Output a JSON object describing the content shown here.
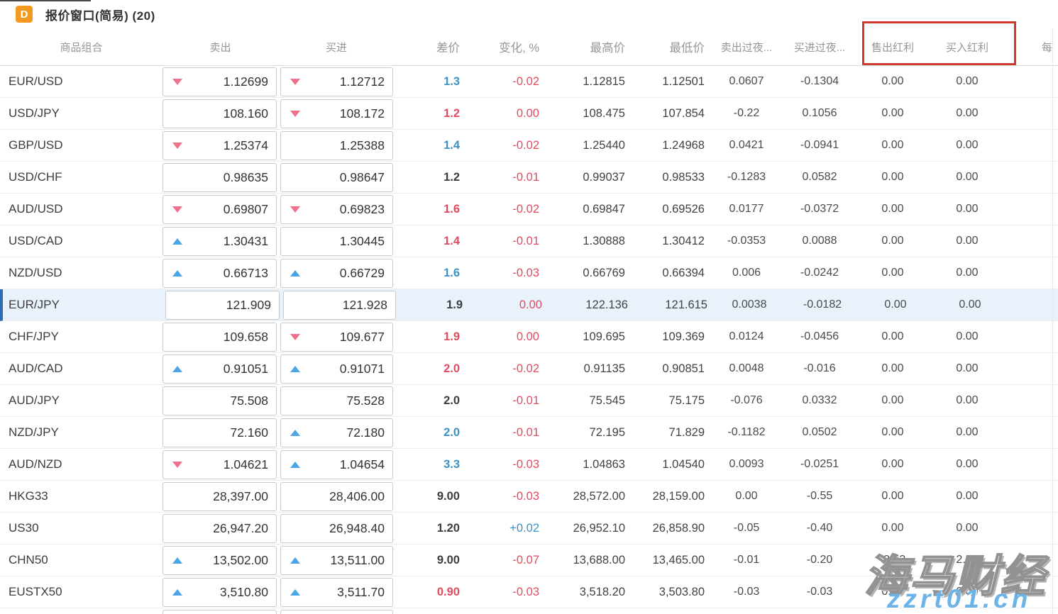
{
  "window": {
    "icon_letter": "D",
    "title": "报价窗口(简易) (20)"
  },
  "columns": [
    {
      "label": "商品组合"
    },
    {
      "label": "卖出"
    },
    {
      "label": "买进"
    },
    {
      "label": "差价"
    },
    {
      "label": "变化, %"
    },
    {
      "label": "最高价"
    },
    {
      "label": "最低价"
    },
    {
      "label": "卖出过夜..."
    },
    {
      "label": "买进过夜..."
    },
    {
      "label": "售出红利"
    },
    {
      "label": "买入红利"
    },
    {
      "label": "每"
    }
  ],
  "annotation": {
    "type": "red-highlight-box",
    "highlighted_columns": [
      "售出红利",
      "买入红利"
    ],
    "color": "#cf3a2e"
  },
  "palette": {
    "red": "#e14b60",
    "blue": "#3a92c5",
    "dark": "#3c3c3c",
    "up_arrow": "#49a5e6",
    "down_arrow": "#f0718a",
    "selected_row_bg": "#e9f2fb",
    "selected_row_border": "#2b6cb0",
    "icon_orange": "#f29a1f",
    "watermark_blue": "#6cb3e8"
  },
  "watermark": {
    "line1": "海马财经",
    "line2": "zzrt01.cn"
  },
  "rows": [
    {
      "symbol": "EUR/USD",
      "sell": "1.12699",
      "sell_arrow": "down",
      "buy": "1.12712",
      "buy_arrow": "down",
      "spread": "1.3",
      "spread_color": "blue",
      "change": "-0.02",
      "change_color": "red",
      "high": "1.12815",
      "low": "1.12501",
      "sell_swap": "0.0607",
      "buy_swap": "-0.1304",
      "sell_div": "0.00",
      "buy_div": "0.00"
    },
    {
      "symbol": "USD/JPY",
      "sell": "108.160",
      "sell_arrow": "",
      "buy": "108.172",
      "buy_arrow": "down",
      "spread": "1.2",
      "spread_color": "red",
      "change": "0.00",
      "change_color": "red",
      "high": "108.475",
      "low": "107.854",
      "sell_swap": "-0.22",
      "buy_swap": "0.1056",
      "sell_div": "0.00",
      "buy_div": "0.00"
    },
    {
      "symbol": "GBP/USD",
      "sell": "1.25374",
      "sell_arrow": "down",
      "buy": "1.25388",
      "buy_arrow": "",
      "spread": "1.4",
      "spread_color": "blue",
      "change": "-0.02",
      "change_color": "red",
      "high": "1.25440",
      "low": "1.24968",
      "sell_swap": "0.0421",
      "buy_swap": "-0.0941",
      "sell_div": "0.00",
      "buy_div": "0.00"
    },
    {
      "symbol": "USD/CHF",
      "sell": "0.98635",
      "sell_arrow": "",
      "buy": "0.98647",
      "buy_arrow": "",
      "spread": "1.2",
      "spread_color": "dark",
      "change": "-0.01",
      "change_color": "red",
      "high": "0.99037",
      "low": "0.98533",
      "sell_swap": "-0.1283",
      "buy_swap": "0.0582",
      "sell_div": "0.00",
      "buy_div": "0.00"
    },
    {
      "symbol": "AUD/USD",
      "sell": "0.69807",
      "sell_arrow": "down",
      "buy": "0.69823",
      "buy_arrow": "down",
      "spread": "1.6",
      "spread_color": "red",
      "change": "-0.02",
      "change_color": "red",
      "high": "0.69847",
      "low": "0.69526",
      "sell_swap": "0.0177",
      "buy_swap": "-0.0372",
      "sell_div": "0.00",
      "buy_div": "0.00"
    },
    {
      "symbol": "USD/CAD",
      "sell": "1.30431",
      "sell_arrow": "up",
      "buy": "1.30445",
      "buy_arrow": "",
      "spread": "1.4",
      "spread_color": "red",
      "change": "-0.01",
      "change_color": "red",
      "high": "1.30888",
      "low": "1.30412",
      "sell_swap": "-0.0353",
      "buy_swap": "0.0088",
      "sell_div": "0.00",
      "buy_div": "0.00"
    },
    {
      "symbol": "NZD/USD",
      "sell": "0.66713",
      "sell_arrow": "up",
      "buy": "0.66729",
      "buy_arrow": "up",
      "spread": "1.6",
      "spread_color": "blue",
      "change": "-0.03",
      "change_color": "red",
      "high": "0.66769",
      "low": "0.66394",
      "sell_swap": "0.006",
      "buy_swap": "-0.0242",
      "sell_div": "0.00",
      "buy_div": "0.00"
    },
    {
      "symbol": "EUR/JPY",
      "selected": true,
      "sell": "121.909",
      "sell_arrow": "",
      "buy": "121.928",
      "buy_arrow": "",
      "spread": "1.9",
      "spread_color": "dark",
      "change": "0.00",
      "change_color": "red",
      "high": "122.136",
      "low": "121.615",
      "sell_swap": "0.0038",
      "buy_swap": "-0.0182",
      "sell_div": "0.00",
      "buy_div": "0.00"
    },
    {
      "symbol": "CHF/JPY",
      "sell": "109.658",
      "sell_arrow": "",
      "buy": "109.677",
      "buy_arrow": "down",
      "spread": "1.9",
      "spread_color": "red",
      "change": "0.00",
      "change_color": "red",
      "high": "109.695",
      "low": "109.369",
      "sell_swap": "0.0124",
      "buy_swap": "-0.0456",
      "sell_div": "0.00",
      "buy_div": "0.00"
    },
    {
      "symbol": "AUD/CAD",
      "sell": "0.91051",
      "sell_arrow": "up",
      "buy": "0.91071",
      "buy_arrow": "up",
      "spread": "2.0",
      "spread_color": "red",
      "change": "-0.02",
      "change_color": "red",
      "high": "0.91135",
      "low": "0.90851",
      "sell_swap": "0.0048",
      "buy_swap": "-0.016",
      "sell_div": "0.00",
      "buy_div": "0.00"
    },
    {
      "symbol": "AUD/JPY",
      "sell": "75.508",
      "sell_arrow": "",
      "buy": "75.528",
      "buy_arrow": "",
      "spread": "2.0",
      "spread_color": "dark",
      "change": "-0.01",
      "change_color": "red",
      "high": "75.545",
      "low": "75.175",
      "sell_swap": "-0.076",
      "buy_swap": "0.0332",
      "sell_div": "0.00",
      "buy_div": "0.00"
    },
    {
      "symbol": "NZD/JPY",
      "sell": "72.160",
      "sell_arrow": "",
      "buy": "72.180",
      "buy_arrow": "up",
      "spread": "2.0",
      "spread_color": "blue",
      "change": "-0.01",
      "change_color": "red",
      "high": "72.195",
      "low": "71.829",
      "sell_swap": "-0.1182",
      "buy_swap": "0.0502",
      "sell_div": "0.00",
      "buy_div": "0.00"
    },
    {
      "symbol": "AUD/NZD",
      "sell": "1.04621",
      "sell_arrow": "down",
      "buy": "1.04654",
      "buy_arrow": "up",
      "spread": "3.3",
      "spread_color": "blue",
      "change": "-0.03",
      "change_color": "red",
      "high": "1.04863",
      "low": "1.04540",
      "sell_swap": "0.0093",
      "buy_swap": "-0.0251",
      "sell_div": "0.00",
      "buy_div": "0.00"
    },
    {
      "symbol": "HKG33",
      "sell": "28,397.00",
      "sell_arrow": "",
      "buy": "28,406.00",
      "buy_arrow": "",
      "spread": "9.00",
      "spread_color": "dark",
      "change": "-0.03",
      "change_color": "red",
      "high": "28,572.00",
      "low": "28,159.00",
      "sell_swap": "0.00",
      "buy_swap": "-0.55",
      "sell_div": "0.00",
      "buy_div": "0.00"
    },
    {
      "symbol": "US30",
      "sell": "26,947.20",
      "sell_arrow": "",
      "buy": "26,948.40",
      "buy_arrow": "",
      "spread": "1.20",
      "spread_color": "dark",
      "change": "+0.02",
      "change_color": "blue",
      "high": "26,952.10",
      "low": "26,858.90",
      "sell_swap": "-0.05",
      "buy_swap": "-0.40",
      "sell_div": "0.00",
      "buy_div": "0.00"
    },
    {
      "symbol": "CHN50",
      "sell": "13,502.00",
      "sell_arrow": "up",
      "buy": "13,511.00",
      "buy_arrow": "up",
      "spread": "9.00",
      "spread_color": "dark",
      "change": "-0.07",
      "change_color": "red",
      "high": "13,688.00",
      "low": "13,465.00",
      "sell_swap": "-0.01",
      "buy_swap": "-0.20",
      "sell_div": "-3.53",
      "buy_div": "2.64"
    },
    {
      "symbol": "EUSTX50",
      "sell": "3,510.80",
      "sell_arrow": "up",
      "buy": "3,511.70",
      "buy_arrow": "up",
      "spread": "0.90",
      "spread_color": "red",
      "change": "-0.03",
      "change_color": "red",
      "high": "3,518.20",
      "low": "3,503.80",
      "sell_swap": "-0.03",
      "buy_swap": "-0.03",
      "sell_div": "0.00",
      "buy_div": "0.00"
    },
    {
      "symbol": "",
      "partial": true,
      "sell": "",
      "sell_arrow": "",
      "buy": "",
      "buy_arrow": "",
      "spread": "",
      "change": "",
      "high": "",
      "low": "",
      "sell_swap": "",
      "buy_swap": "",
      "sell_div": "",
      "buy_div": ""
    }
  ]
}
